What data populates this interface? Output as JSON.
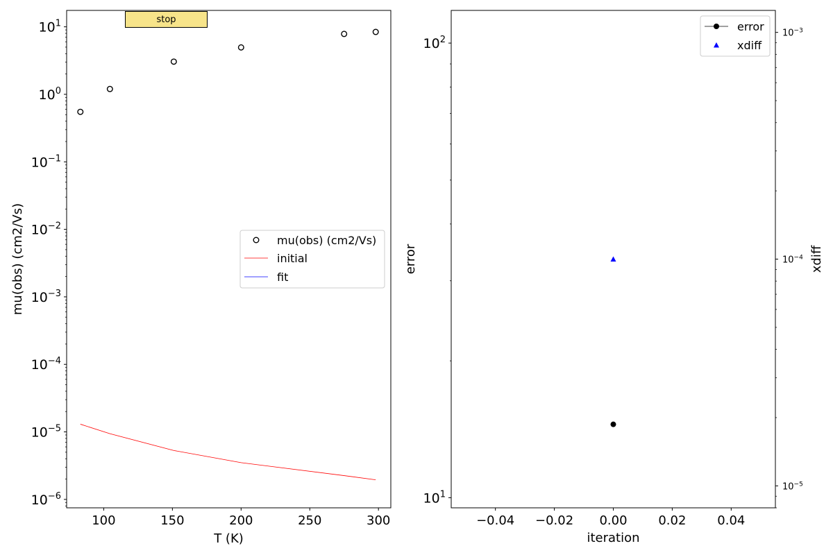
{
  "controls": {
    "stop_label": "stop"
  },
  "chart_data": [
    {
      "type": "scatter",
      "xlabel": "T (K)",
      "ylabel": "mu(obs) (cm2/Vs)",
      "yscale": "log",
      "xlim": [
        73,
        309
      ],
      "ylim": [
        7.5e-07,
        17.5
      ],
      "xticks": [
        100,
        150,
        200,
        250,
        300
      ],
      "yticks": [
        1e-06,
        1e-05,
        0.0001,
        0.001,
        0.01,
        0.1,
        1,
        10
      ],
      "legend_position": "center-right",
      "series": [
        {
          "name": "mu(obs) (cm2/Vs)",
          "kind": "markers",
          "marker": "open-circle",
          "color": "#000000",
          "x": [
            83,
            104.5,
            151,
            200,
            275,
            298
          ],
          "y": [
            0.55,
            1.2,
            3.05,
            4.95,
            7.85,
            8.4
          ]
        },
        {
          "name": "initial",
          "kind": "line",
          "color": "#ff0000",
          "x": [
            83,
            104.5,
            151,
            200,
            275,
            298
          ],
          "y": [
            1.3e-05,
            9.4e-06,
            5.3e-06,
            3.5e-06,
            2.25e-06,
            1.95e-06
          ]
        },
        {
          "name": "fit",
          "kind": "line",
          "color": "#0000ff",
          "x": [],
          "y": []
        }
      ]
    },
    {
      "type": "scatter",
      "xlabel": "iteration",
      "ylabel": "error",
      "y2label": "xdiff",
      "yscale": "log",
      "y2scale": "log",
      "xlim": [
        -0.055,
        0.055
      ],
      "ylim": [
        9.5,
        118
      ],
      "y2lim": [
        8e-06,
        0.00125
      ],
      "xticks": [
        -0.04,
        -0.02,
        0.0,
        0.02,
        0.04
      ],
      "yticks": [
        10,
        100
      ],
      "y2ticks": [
        1e-05,
        0.0001,
        0.001
      ],
      "legend_position": "top-right",
      "series": [
        {
          "name": "error",
          "kind": "line-marker",
          "marker": "filled-circle",
          "color": "#000000",
          "axis": "left",
          "x": [
            0.0
          ],
          "y": [
            14.5
          ]
        },
        {
          "name": "xdiff",
          "kind": "marker",
          "marker": "filled-triangle",
          "color": "#0000ff",
          "axis": "right",
          "x": [
            0.0
          ],
          "y": [
            0.0001
          ]
        }
      ]
    }
  ]
}
